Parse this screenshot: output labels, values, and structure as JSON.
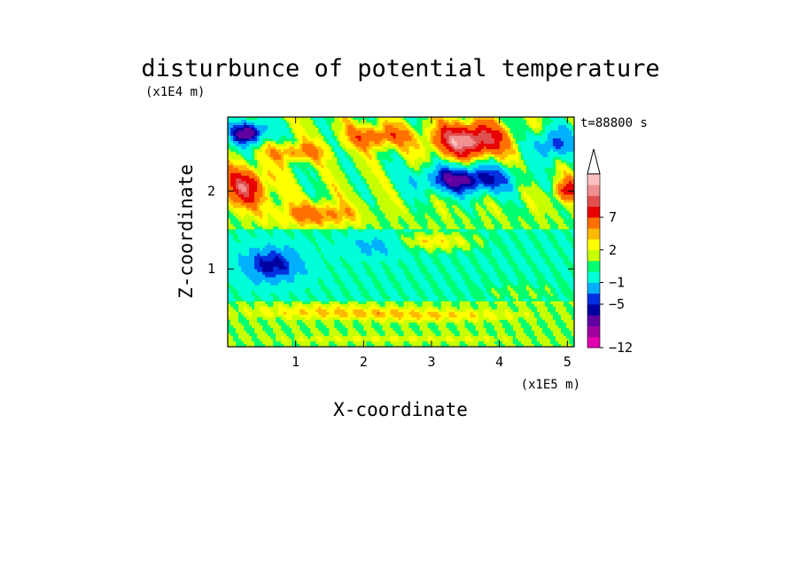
{
  "chart_data": {
    "type": "heatmap",
    "title": "disturbunce of potential temperature",
    "xlabel": "X-coordinate",
    "ylabel": "Z-coordinate",
    "x_unit": "(x1E5 m)",
    "y_unit": "(x1E4 m)",
    "time_label": "t=88800 s",
    "xlim": [
      0,
      5.1
    ],
    "ylim": [
      0,
      2.95
    ],
    "x_ticks": [
      {
        "value": 1,
        "label": "1"
      },
      {
        "value": 2,
        "label": "2"
      },
      {
        "value": 3,
        "label": "3"
      },
      {
        "value": 4,
        "label": "4"
      },
      {
        "value": 5,
        "label": "5"
      }
    ],
    "y_ticks": [
      {
        "value": 1,
        "label": "1"
      },
      {
        "value": 2,
        "label": "2"
      }
    ],
    "colorbar": {
      "colors": [
        "#e000b0",
        "#a000a0",
        "#6000a0",
        "#0000a0",
        "#0030e0",
        "#00b0ff",
        "#00ffd8",
        "#00ff70",
        "#c8ff00",
        "#ffff00",
        "#ffb800",
        "#ff7000",
        "#e80000",
        "#e05050",
        "#f09090",
        "#ffc0c0"
      ],
      "labels": [
        {
          "value": -12,
          "label": "−12"
        },
        {
          "value": -5,
          "label": "−5"
        },
        {
          "value": -1,
          "label": "−1"
        },
        {
          "value": 2,
          "label": "2"
        },
        {
          "value": 7,
          "label": "7"
        }
      ],
      "extend": "max"
    },
    "features": [
      {
        "x": 0.3,
        "z": 2.75,
        "amplitude": -10,
        "sx": 0.25,
        "sz": 0.15
      },
      {
        "x": 3.55,
        "z": 2.65,
        "amplitude": 10,
        "sx": 0.5,
        "sz": 0.22
      },
      {
        "x": 3.5,
        "z": 2.15,
        "amplitude": -9,
        "sx": 0.65,
        "sz": 0.18
      },
      {
        "x": 0.25,
        "z": 2.05,
        "amplitude": 7,
        "sx": 0.35,
        "sz": 0.25
      },
      {
        "x": 5.0,
        "z": 2.0,
        "amplitude": 6,
        "sx": 0.2,
        "sz": 0.15
      },
      {
        "x": 4.8,
        "z": 2.6,
        "amplitude": -6,
        "sx": 0.3,
        "sz": 0.2
      },
      {
        "x": 0.65,
        "z": 1.05,
        "amplitude": -6,
        "sx": 0.45,
        "sz": 0.22
      },
      {
        "x": 1.3,
        "z": 1.7,
        "amplitude": 4,
        "sx": 0.6,
        "sz": 0.15
      },
      {
        "x": 3.0,
        "z": 1.35,
        "amplitude": 3,
        "sx": 0.7,
        "sz": 0.12
      },
      {
        "x": 1.5,
        "z": 0.45,
        "amplitude": 2,
        "sx": 1.2,
        "sz": 0.08
      },
      {
        "x": 3.0,
        "z": 0.4,
        "amplitude": 2,
        "sx": 1.2,
        "sz": 0.07
      },
      {
        "x": 2.5,
        "z": 0.1,
        "amplitude": 1,
        "sx": 2.0,
        "sz": 0.05
      },
      {
        "x": 2.2,
        "z": 1.3,
        "amplitude": -3,
        "sx": 0.45,
        "sz": 0.15
      },
      {
        "x": 4.3,
        "z": 0.7,
        "amplitude": 1,
        "sx": 0.8,
        "sz": 0.15
      },
      {
        "x": 1.0,
        "z": 2.5,
        "amplitude": 4,
        "sx": 0.4,
        "sz": 0.12
      },
      {
        "x": 2.2,
        "z": 2.7,
        "amplitude": 5,
        "sx": 0.45,
        "sz": 0.15
      }
    ]
  }
}
